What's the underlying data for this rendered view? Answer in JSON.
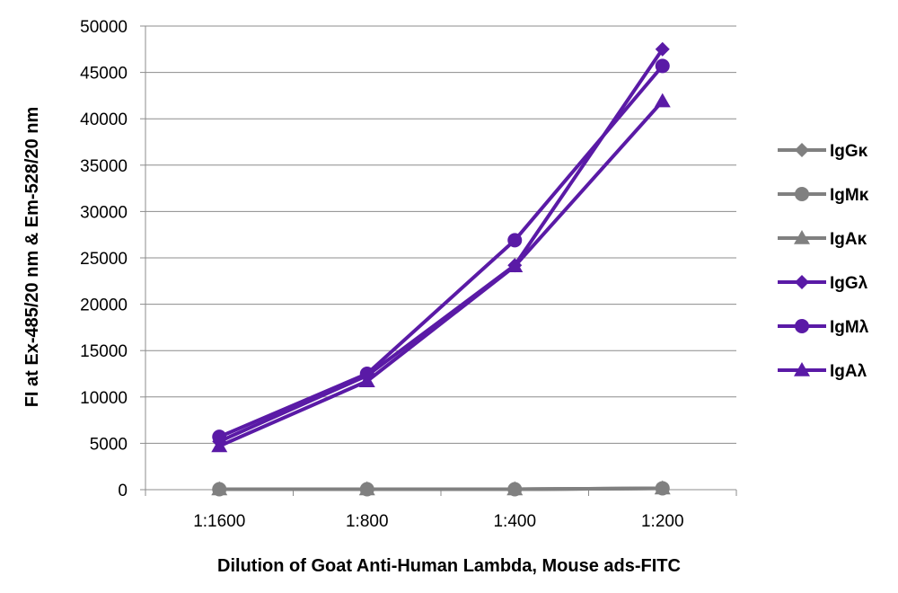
{
  "chart_data": {
    "type": "line",
    "title": "",
    "xlabel": "Dilution of Goat Anti-Human Lambda, Mouse ads-FITC",
    "ylabel": "FI at Ex-485/20 nm & Em-528/20 nm",
    "categories": [
      "1:1600",
      "1:800",
      "1:400",
      "1:200"
    ],
    "ylim": [
      0,
      50000
    ],
    "yticks": [
      0,
      5000,
      10000,
      15000,
      20000,
      25000,
      30000,
      35000,
      40000,
      45000,
      50000
    ],
    "grid": "horizontal",
    "legend_position": "right",
    "series": [
      {
        "name": "IgGκ",
        "marker": "diamond",
        "color": "#808080",
        "values": [
          50,
          50,
          50,
          150
        ]
      },
      {
        "name": "IgMκ",
        "marker": "circle",
        "color": "#808080",
        "values": [
          50,
          50,
          50,
          150
        ]
      },
      {
        "name": "IgAκ",
        "marker": "triangle",
        "color": "#808080",
        "values": [
          50,
          50,
          50,
          150
        ]
      },
      {
        "name": "IgGλ",
        "marker": "diamond",
        "color": "#5a1aa6",
        "values": [
          5200,
          12300,
          24200,
          47500
        ]
      },
      {
        "name": "IgMλ",
        "marker": "circle",
        "color": "#5a1aa6",
        "values": [
          5700,
          12500,
          26900,
          45700
        ]
      },
      {
        "name": "IgAλ",
        "marker": "triangle",
        "color": "#5a1aa6",
        "values": [
          4700,
          11700,
          24100,
          41900
        ]
      }
    ]
  }
}
